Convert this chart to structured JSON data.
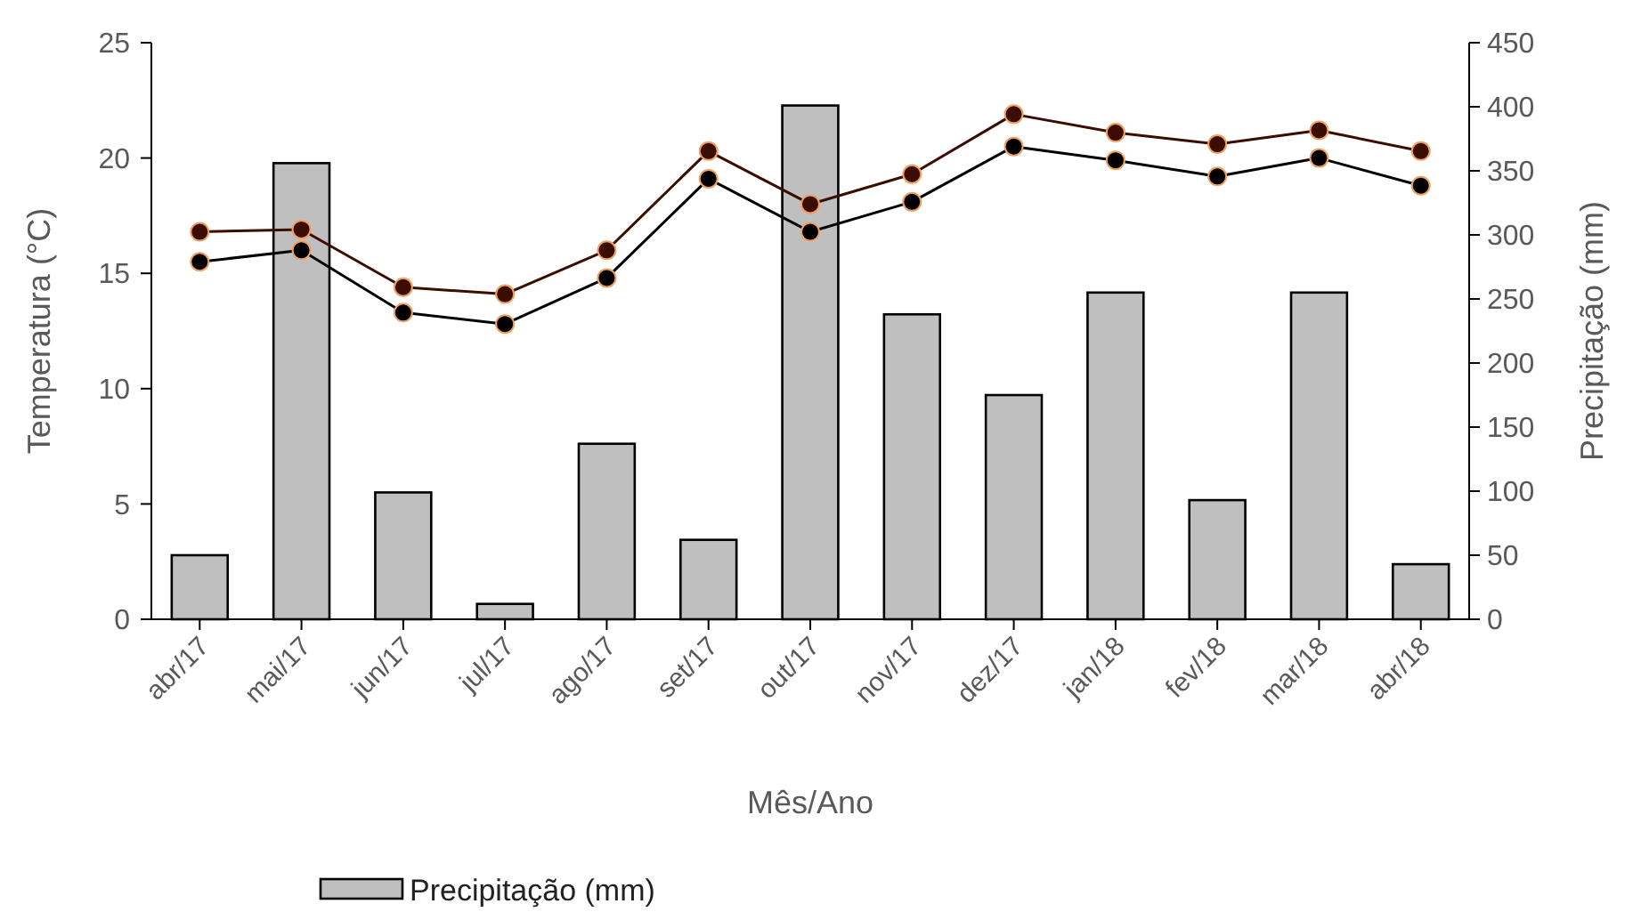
{
  "chart_data": {
    "type": "line",
    "xlabel": "Mês/Ano",
    "ylabel": "Temperatura (°C)",
    "y2label": "Precipitação (mm)",
    "categories": [
      "abr/17",
      "mai/17",
      "jun/17",
      "jul/17",
      "ago/17",
      "set/17",
      "out/17",
      "nov/17",
      "dez/17",
      "jan/18",
      "fev/18",
      "mar/18",
      "abr/18"
    ],
    "series": [
      {
        "type": "bar",
        "axis": "y2",
        "name": "Precipitação (mm)",
        "color": "#bfbfbf",
        "values": [
          50,
          356,
          99,
          12,
          137,
          62,
          401,
          238,
          175,
          255,
          93,
          255,
          43
        ]
      },
      {
        "color": "#3b0d00",
        "values": [
          16.8,
          16.9,
          14.4,
          14.1,
          16.0,
          20.3,
          18.0,
          19.3,
          21.9,
          21.1,
          20.6,
          21.2,
          20.3
        ]
      },
      {
        "color": "#000000",
        "values": [
          15.5,
          16.0,
          13.3,
          12.8,
          14.8,
          19.1,
          16.8,
          18.1,
          20.5,
          19.9,
          19.2,
          20.0,
          18.8
        ]
      }
    ],
    "ylim": [
      0,
      25
    ],
    "yticks": [
      0,
      5,
      10,
      15,
      20,
      25
    ],
    "y2lim": [
      0,
      450
    ],
    "y2ticks": [
      0,
      50,
      100,
      150,
      200,
      250,
      300,
      350,
      400,
      450
    ],
    "marker": "circle",
    "grid": false,
    "legend": "bottom"
  }
}
